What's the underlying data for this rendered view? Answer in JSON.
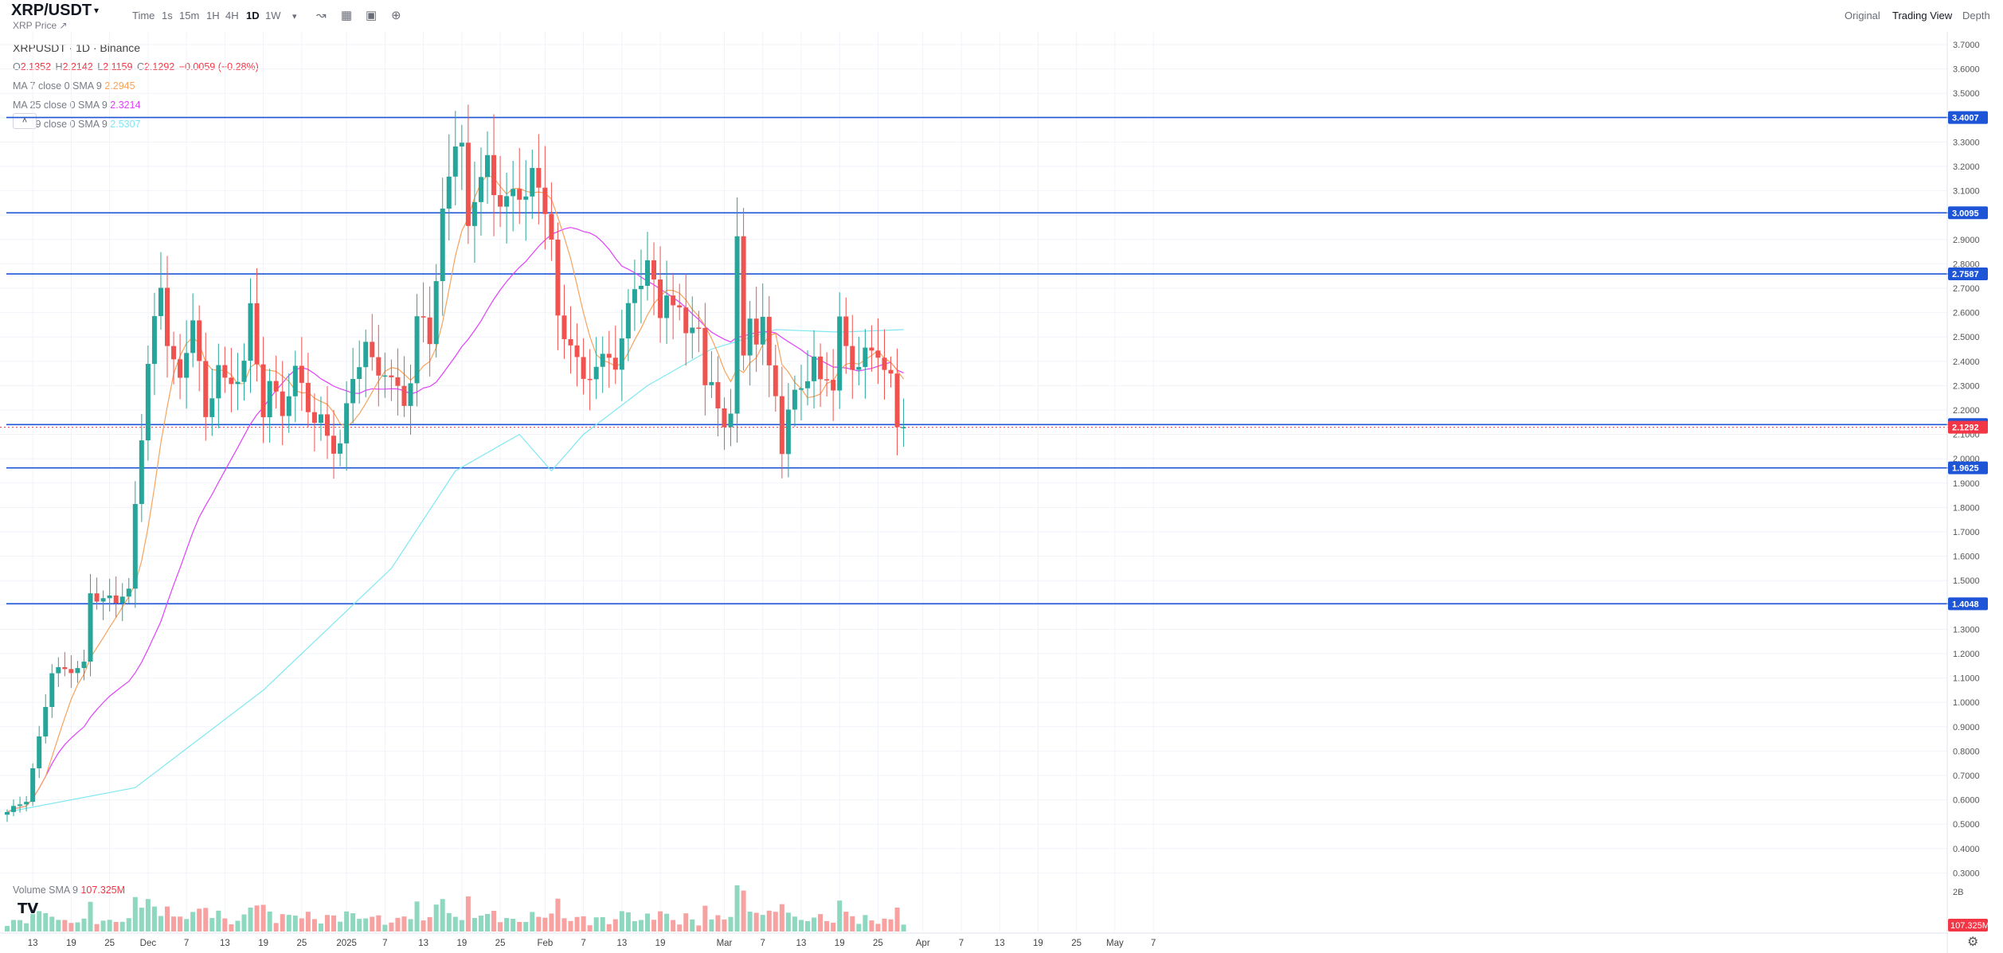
{
  "header": {
    "symbol": "XRP/USDT",
    "subtitle": "XRP Price ↗",
    "intervals": [
      "Time",
      "1s",
      "15m",
      "1H",
      "4H",
      "1D",
      "1W"
    ],
    "active_interval": "1D",
    "views": [
      "Original",
      "Trading View",
      "Depth"
    ],
    "active_view": "Trading View",
    "icons": [
      "chevron-down-icon",
      "indicator-icon",
      "chart-type-icon",
      "camera-icon",
      "plus-circle-icon"
    ]
  },
  "legend": {
    "title": "XRPUSDT · 1D · Binance",
    "ohlc": [
      {
        "k": "O",
        "v": "2.1352"
      },
      {
        "k": "H",
        "v": "2.2142"
      },
      {
        "k": "L",
        "v": "2.1159"
      },
      {
        "k": "C",
        "v": "2.1292"
      }
    ],
    "change": "−0.0059 (−0.28%)",
    "ma7_label": "MA 7 close 0 SMA 9",
    "ma7_value": "2.2945",
    "ma25_label": "MA 25 close 0 SMA 9",
    "ma25_value": "2.3214",
    "ma99_label": "MA 99 close 0 SMA 9",
    "ma99_value": "2.5307",
    "collapse": "˄"
  },
  "volume": {
    "label": "Volume SMA 9",
    "value": "107.325M",
    "axis_top": "2B"
  },
  "colors": {
    "up": "#26a69a",
    "down": "#ef5350",
    "up_light": "#8fd8c0",
    "down_light": "#f7a1a1",
    "ma7": "#f7a35c",
    "ma25": "#e040fb",
    "ma99": "#7ee8f2",
    "level": "#1e55d6",
    "price": "#f23645",
    "grid": "#f0f3fa"
  },
  "chart_data": {
    "type": "candlestick",
    "symbol": "XRPUSDT",
    "interval": "1D",
    "exchange": "Binance",
    "y_range": [
      0.25,
      3.75
    ],
    "y_ticks": [
      0.3,
      0.4,
      0.5,
      0.6,
      0.7,
      0.8,
      0.9,
      1.0,
      1.1,
      1.2,
      1.3,
      1.4,
      1.5,
      1.6,
      1.7,
      1.8,
      1.9,
      2.0,
      2.1,
      2.2,
      2.3,
      2.4,
      2.5,
      2.6,
      2.7,
      2.8,
      2.9,
      3.0,
      3.1,
      3.2,
      3.3,
      3.4,
      3.5,
      3.6,
      3.7
    ],
    "x_ticks": [
      {
        "i": 4,
        "label": "13"
      },
      {
        "i": 10,
        "label": "19"
      },
      {
        "i": 16,
        "label": "25"
      },
      {
        "i": 22,
        "label": "Dec"
      },
      {
        "i": 28,
        "label": "7"
      },
      {
        "i": 34,
        "label": "13"
      },
      {
        "i": 40,
        "label": "19"
      },
      {
        "i": 46,
        "label": "25"
      },
      {
        "i": 53,
        "label": "2025"
      },
      {
        "i": 59,
        "label": "7"
      },
      {
        "i": 65,
        "label": "13"
      },
      {
        "i": 71,
        "label": "19"
      },
      {
        "i": 77,
        "label": "25"
      },
      {
        "i": 84,
        "label": "Feb"
      },
      {
        "i": 90,
        "label": "7"
      },
      {
        "i": 96,
        "label": "13"
      },
      {
        "i": 102,
        "label": "19"
      },
      {
        "i": 112,
        "label": "Mar"
      },
      {
        "i": 118,
        "label": "7"
      },
      {
        "i": 124,
        "label": "13"
      },
      {
        "i": 130,
        "label": "19"
      },
      {
        "i": 136,
        "label": "25"
      },
      {
        "i": 143,
        "label": "Apr"
      },
      {
        "i": 149,
        "label": "7"
      },
      {
        "i": 155,
        "label": "13"
      },
      {
        "i": 161,
        "label": "19"
      },
      {
        "i": 167,
        "label": "25"
      },
      {
        "i": 173,
        "label": "May"
      },
      {
        "i": 179,
        "label": "7"
      }
    ],
    "horizontal_levels": [
      {
        "label": "3.4007",
        "value": 3.4007
      },
      {
        "label": "3.0095",
        "value": 3.0095
      },
      {
        "label": "2.7587",
        "value": 2.7587
      },
      {
        "label": "2.1402",
        "value": 2.1402
      },
      {
        "label": "1.9625",
        "value": 1.9625
      },
      {
        "label": "1.4048",
        "value": 1.4048
      }
    ],
    "last_price": {
      "label": "2.1292",
      "value": 2.1292
    },
    "close_path": [
      [
        0,
        0.55
      ],
      [
        3,
        0.6
      ],
      [
        5,
        0.85
      ],
      [
        7,
        1.13
      ],
      [
        9,
        1.13
      ],
      [
        12,
        1.15
      ],
      [
        13,
        1.45
      ],
      [
        15,
        1.42
      ],
      [
        17,
        1.42
      ],
      [
        18,
        1.45
      ],
      [
        19,
        1.45
      ],
      [
        20,
        1.8
      ],
      [
        22,
        2.4
      ],
      [
        24,
        2.7
      ],
      [
        25,
        2.5
      ],
      [
        27,
        2.3
      ],
      [
        29,
        2.6
      ],
      [
        31,
        2.15
      ],
      [
        33,
        2.4
      ],
      [
        34,
        2.3
      ],
      [
        35,
        2.3
      ],
      [
        37,
        2.4
      ],
      [
        38,
        2.6
      ],
      [
        40,
        2.2
      ],
      [
        41,
        2.3
      ],
      [
        43,
        2.2
      ],
      [
        45,
        2.35
      ],
      [
        46,
        2.3
      ],
      [
        48,
        2.15
      ],
      [
        49,
        2.15
      ],
      [
        50,
        2.1
      ],
      [
        51,
        2.05
      ],
      [
        52,
        2.05
      ],
      [
        53,
        2.2
      ],
      [
        54,
        2.35
      ],
      [
        56,
        2.45
      ],
      [
        57,
        2.4
      ],
      [
        59,
        2.35
      ],
      [
        60,
        2.3
      ],
      [
        61,
        2.3
      ],
      [
        62,
        2.25
      ],
      [
        63,
        2.3
      ],
      [
        64,
        2.55
      ],
      [
        65,
        2.6
      ],
      [
        66,
        2.5
      ],
      [
        67,
        2.7
      ],
      [
        68,
        3.0
      ],
      [
        69,
        3.2
      ],
      [
        70,
        3.3
      ],
      [
        71,
        3.25
      ],
      [
        72,
        2.95
      ],
      [
        73,
        3.1
      ],
      [
        74,
        3.15
      ],
      [
        75,
        3.2
      ],
      [
        76,
        3.1
      ],
      [
        78,
        3.05
      ],
      [
        80,
        3.1
      ],
      [
        81,
        3.1
      ],
      [
        82,
        3.15
      ],
      [
        84,
        3.05
      ],
      [
        85,
        2.9
      ],
      [
        86,
        2.55
      ],
      [
        87,
        2.5
      ],
      [
        88,
        2.5
      ],
      [
        89,
        2.4
      ],
      [
        90,
        2.3
      ],
      [
        92,
        2.4
      ],
      [
        93,
        2.4
      ],
      [
        95,
        2.4
      ],
      [
        96,
        2.5
      ],
      [
        97,
        2.6
      ],
      [
        98,
        2.7
      ],
      [
        99,
        2.75
      ],
      [
        100,
        2.8
      ],
      [
        101,
        2.7
      ],
      [
        102,
        2.6
      ],
      [
        103,
        2.7
      ],
      [
        104,
        2.6
      ],
      [
        105,
        2.6
      ],
      [
        106,
        2.55
      ],
      [
        107,
        2.55
      ],
      [
        108,
        2.5
      ],
      [
        109,
        2.3
      ],
      [
        110,
        2.35
      ],
      [
        111,
        2.2
      ],
      [
        112,
        2.1
      ],
      [
        113,
        2.2
      ],
      [
        114,
        2.95
      ],
      [
        115,
        2.4
      ],
      [
        116,
        2.55
      ],
      [
        117,
        2.5
      ],
      [
        118,
        2.6
      ],
      [
        119,
        2.35
      ],
      [
        120,
        2.25
      ],
      [
        121,
        2.05
      ],
      [
        122,
        2.2
      ],
      [
        123,
        2.25
      ],
      [
        124,
        2.3
      ],
      [
        125,
        2.35
      ],
      [
        126,
        2.4
      ],
      [
        127,
        2.3
      ],
      [
        128,
        2.35
      ],
      [
        129,
        2.3
      ],
      [
        130,
        2.55
      ],
      [
        131,
        2.45
      ],
      [
        132,
        2.4
      ],
      [
        133,
        2.38
      ],
      [
        134,
        2.42
      ],
      [
        135,
        2.45
      ],
      [
        136,
        2.45
      ],
      [
        137,
        2.35
      ],
      [
        138,
        2.32
      ],
      [
        139,
        2.15
      ],
      [
        140,
        2.13
      ]
    ],
    "ma99_path": [
      [
        0,
        0.55
      ],
      [
        20,
        0.65
      ],
      [
        30,
        0.85
      ],
      [
        40,
        1.05
      ],
      [
        50,
        1.3
      ],
      [
        60,
        1.55
      ],
      [
        70,
        1.95
      ],
      [
        80,
        2.1
      ],
      [
        85,
        1.95
      ],
      [
        90,
        2.1
      ],
      [
        100,
        2.3
      ],
      [
        110,
        2.45
      ],
      [
        120,
        2.53
      ],
      [
        130,
        2.52
      ],
      [
        140,
        2.53
      ]
    ]
  }
}
